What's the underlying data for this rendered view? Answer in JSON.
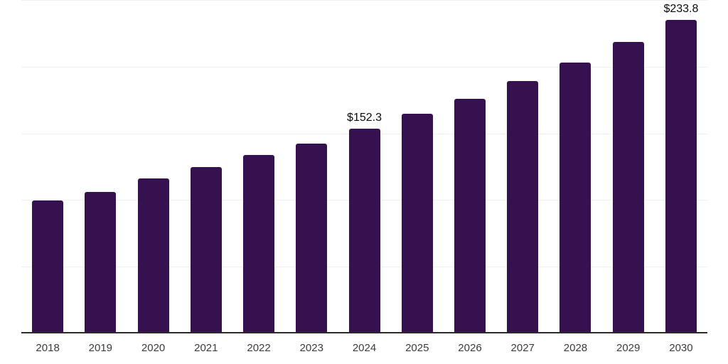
{
  "chart": {
    "background": "#ffffff",
    "colors": {
      "bar": "#361150",
      "grid": "#f1f1f3",
      "axis": "#2b2b2b",
      "tick_label": "#3c3c3c",
      "data_label": "#0b0b0b"
    }
  },
  "chart_data": {
    "type": "bar",
    "title": "",
    "xlabel": "",
    "ylabel": "",
    "categories": [
      "2018",
      "2019",
      "2020",
      "2021",
      "2022",
      "2023",
      "2024",
      "2025",
      "2026",
      "2027",
      "2028",
      "2029",
      "2030"
    ],
    "values": [
      98.7,
      104.9,
      115.2,
      123.5,
      132.5,
      141.0,
      152.3,
      163.6,
      174.8,
      188.0,
      201.8,
      217.3,
      233.8
    ],
    "data_labels": [
      {
        "category": "2024",
        "text": "$152.3"
      },
      {
        "category": "2030",
        "text": "$233.8"
      }
    ],
    "ylim": [
      0,
      250
    ],
    "gridline_values": [
      50,
      100,
      150,
      200,
      250
    ],
    "grid": true,
    "legend": false,
    "y_axis_tick_labels_visible": false
  }
}
